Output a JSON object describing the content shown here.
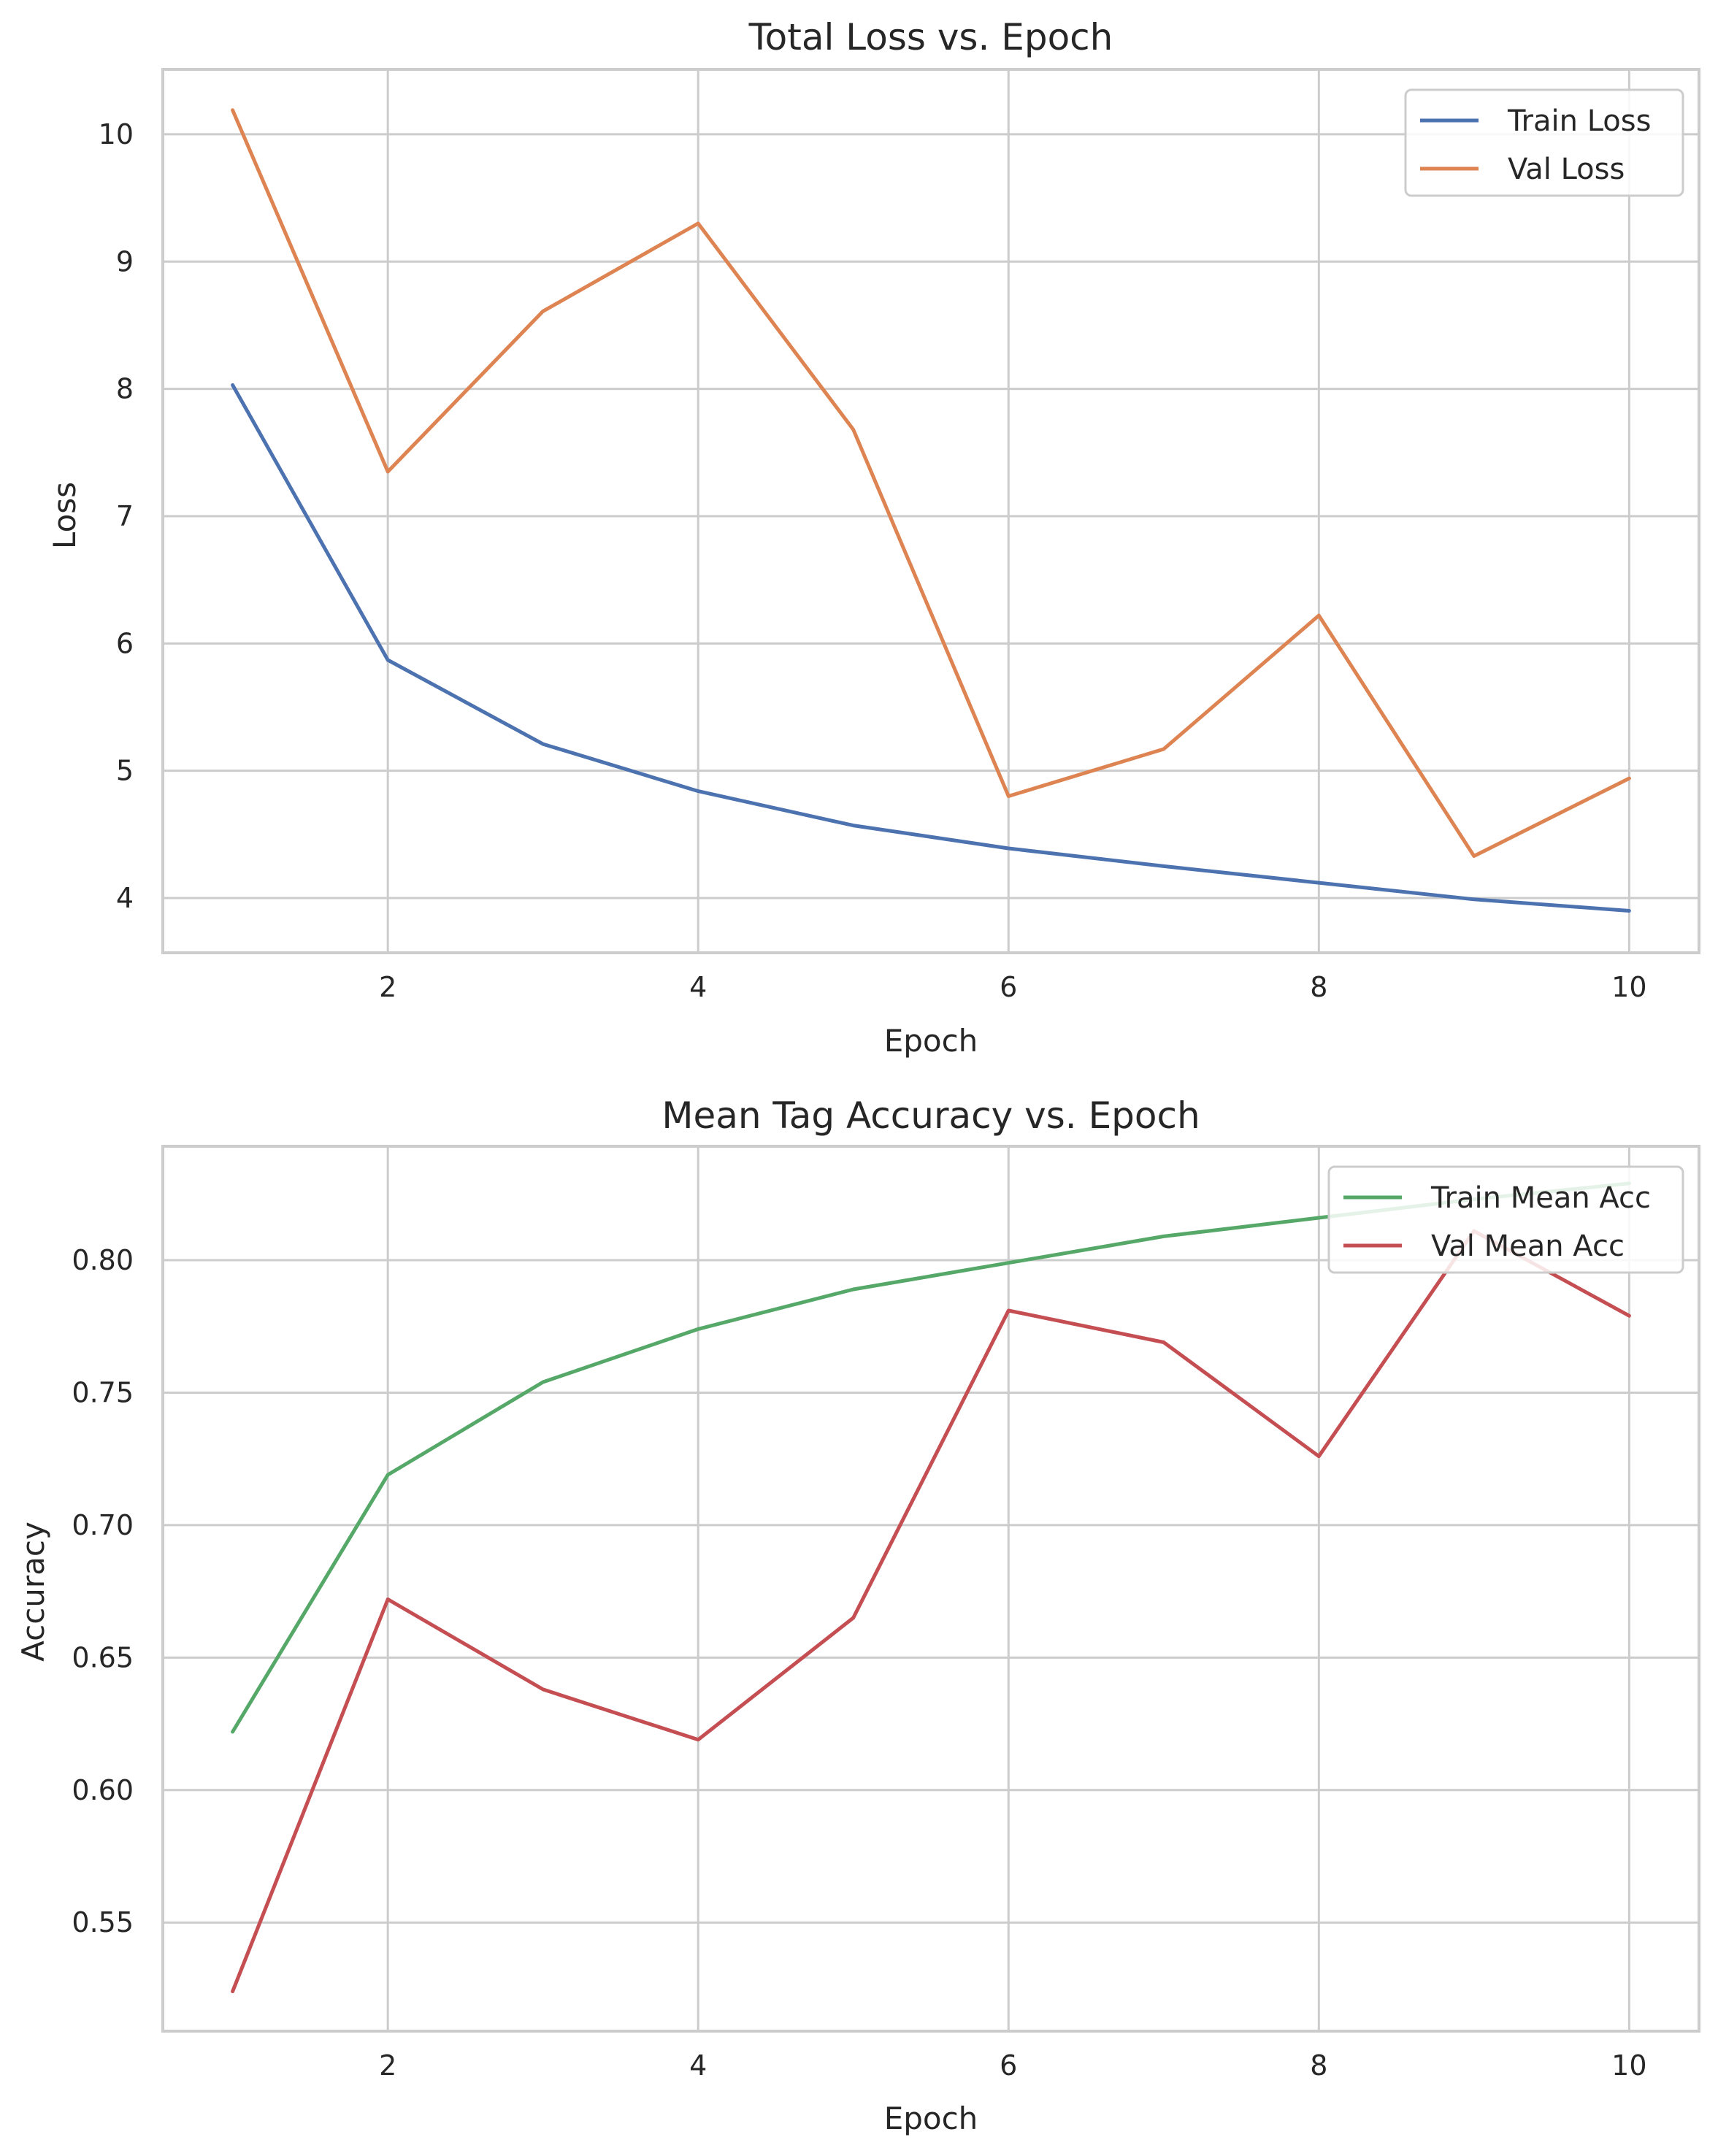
{
  "chart_data": [
    {
      "type": "line",
      "title": "Total Loss vs. Epoch",
      "xlabel": "Epoch",
      "ylabel": "Loss",
      "xlim": [
        0.55,
        10.45
      ],
      "ylim": [
        3.57,
        10.51
      ],
      "xticks": [
        2,
        4,
        6,
        8,
        10
      ],
      "yticks": [
        4,
        5,
        6,
        7,
        8,
        9,
        10
      ],
      "grid": true,
      "legend_position": "top-right",
      "x": [
        1,
        2,
        3,
        4,
        5,
        6,
        7,
        8,
        9,
        10
      ],
      "series": [
        {
          "name": "Train Loss",
          "color": "#4c72b0",
          "values": [
            8.03,
            5.87,
            5.21,
            4.84,
            4.57,
            4.39,
            4.25,
            4.12,
            3.99,
            3.9
          ]
        },
        {
          "name": "Val Loss",
          "color": "#dd8452",
          "values": [
            10.19,
            7.35,
            8.61,
            9.3,
            7.68,
            4.8,
            5.17,
            6.22,
            4.33,
            4.94
          ]
        }
      ]
    },
    {
      "type": "line",
      "title": "Mean Tag Accuracy vs. Epoch",
      "xlabel": "Epoch",
      "ylabel": "Accuracy",
      "xlim": [
        0.55,
        10.45
      ],
      "ylim": [
        0.509,
        0.843
      ],
      "xticks": [
        2,
        4,
        6,
        8,
        10
      ],
      "yticks": [
        0.55,
        0.6,
        0.65,
        0.7,
        0.75,
        0.8
      ],
      "yticklabels": [
        "0.55",
        "0.60",
        "0.65",
        "0.70",
        "0.75",
        "0.80"
      ],
      "grid": true,
      "legend_position": "top-right",
      "x": [
        1,
        2,
        3,
        4,
        5,
        6,
        7,
        8,
        9,
        10
      ],
      "series": [
        {
          "name": "Train Mean Acc",
          "color": "#55a868",
          "values": [
            0.622,
            0.719,
            0.754,
            0.774,
            0.789,
            0.799,
            0.809,
            0.816,
            0.823,
            0.829
          ]
        },
        {
          "name": "Val Mean Acc",
          "color": "#c44e52",
          "values": [
            0.524,
            0.672,
            0.638,
            0.619,
            0.665,
            0.781,
            0.769,
            0.726,
            0.811,
            0.779
          ]
        }
      ]
    }
  ]
}
